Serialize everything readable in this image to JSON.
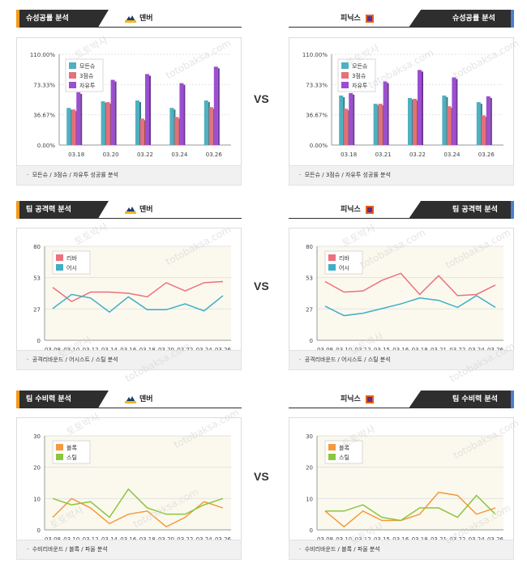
{
  "vs_label": "VS",
  "watermark": [
    "토토박사",
    "totobaksa.com"
  ],
  "colors": {
    "orange": "#f29a1c",
    "blue": "#4b7fd0",
    "dark": "#2e2e2e"
  },
  "panels": [
    {
      "id": "shot-denver",
      "title": "슈성공률 분석",
      "team": "덴버",
      "side": "left",
      "footer": "모든슈 / 3점슈 / 자유투 성공률 분석"
    },
    {
      "id": "shot-phoenix",
      "title": "슈성공률 분석",
      "team": "피닉스",
      "side": "right",
      "footer": "모든슈 / 3점슈 / 자유투 성공률 분석"
    },
    {
      "id": "off-denver",
      "title": "팀 공격력 분석",
      "team": "덴버",
      "side": "left",
      "footer": "공격리바운드 / 어시스트 / 스틸 분석"
    },
    {
      "id": "off-phoenix",
      "title": "팀 공격력 분석",
      "team": "피닉스",
      "side": "right",
      "footer": "공격리바운드 / 어시스트 / 스틸 분석"
    },
    {
      "id": "def-denver",
      "title": "팀 수비력 분석",
      "team": "덴버",
      "side": "left",
      "footer": "수비리바운드 / 블록 / 파울 분석"
    },
    {
      "id": "def-phoenix",
      "title": "팀 수비력 분석",
      "team": "피닉스",
      "side": "right",
      "footer": "수비리바운드 / 블록 / 파울 분석"
    }
  ],
  "chart_data": [
    {
      "panel": "shot-denver",
      "type": "bar",
      "categories": [
        "03.18",
        "03.20",
        "03.22",
        "03.24",
        "03.26"
      ],
      "yticks": [
        "0.00%",
        "36.67%",
        "73.33%",
        "110.00%"
      ],
      "ylim": [
        0,
        110
      ],
      "legend_position": "top-left",
      "series": [
        {
          "name": "모든슈",
          "color": "#4fb0c0",
          "values": [
            45,
            53,
            54,
            45,
            54
          ]
        },
        {
          "name": "3점슈",
          "color": "#e5707a",
          "values": [
            43,
            52,
            32,
            34,
            46
          ]
        },
        {
          "name": "자유투",
          "color": "#9b4fd0",
          "values": [
            64,
            79,
            86,
            75,
            95
          ]
        }
      ]
    },
    {
      "panel": "shot-phoenix",
      "type": "bar",
      "categories": [
        "03.18",
        "03.21",
        "03.22",
        "03.24",
        "03.26"
      ],
      "yticks": [
        "0.00%",
        "36.67%",
        "73.33%",
        "110.00%"
      ],
      "ylim": [
        0,
        110
      ],
      "legend_position": "top-left",
      "series": [
        {
          "name": "모든슈",
          "color": "#4fb0c0",
          "values": [
            60,
            50,
            57,
            60,
            52
          ]
        },
        {
          "name": "3점슈",
          "color": "#e5707a",
          "values": [
            44,
            50,
            56,
            47,
            36
          ]
        },
        {
          "name": "자유투",
          "color": "#9b4fd0",
          "values": [
            63,
            77,
            91,
            82,
            59
          ]
        }
      ]
    },
    {
      "panel": "off-denver",
      "type": "line",
      "categories": [
        "03.08",
        "03.10",
        "03.12",
        "03.14",
        "03.16",
        "03.18",
        "03.20",
        "03.22",
        "03.24",
        "03.26"
      ],
      "yticks": [
        "0",
        "27",
        "53",
        "80"
      ],
      "ylim": [
        0,
        80
      ],
      "legend_position": "top-left",
      "series": [
        {
          "name": "리바",
          "color": "#ef6f7c",
          "values": [
            45,
            33,
            41,
            41,
            40,
            37,
            49,
            42,
            49,
            50
          ]
        },
        {
          "name": "어시",
          "color": "#41aec6",
          "values": [
            27,
            39,
            36,
            24,
            37,
            26,
            26,
            31,
            25,
            38
          ]
        }
      ]
    },
    {
      "panel": "off-phoenix",
      "type": "line",
      "categories": [
        "03.08",
        "03.10",
        "03.12",
        "03.15",
        "03.16",
        "03.18",
        "03.21",
        "03.22",
        "03.24",
        "03.26"
      ],
      "yticks": [
        "0",
        "27",
        "53",
        "80"
      ],
      "ylim": [
        0,
        80
      ],
      "legend_position": "top-left",
      "series": [
        {
          "name": "리바",
          "color": "#ef6f7c",
          "values": [
            50,
            41,
            42,
            51,
            57,
            39,
            55,
            38,
            39,
            47
          ]
        },
        {
          "name": "어시",
          "color": "#41aec6",
          "values": [
            29,
            21,
            23,
            27,
            31,
            36,
            34,
            28,
            38,
            28
          ]
        }
      ]
    },
    {
      "panel": "def-denver",
      "type": "line",
      "categories": [
        "03.08",
        "03.10",
        "03.12",
        "03.14",
        "03.16",
        "03.18",
        "03.20",
        "03.22",
        "03.24",
        "03.26"
      ],
      "yticks": [
        "0",
        "10",
        "20",
        "30"
      ],
      "ylim": [
        0,
        30
      ],
      "legend_position": "top-left",
      "series": [
        {
          "name": "블록",
          "color": "#f59a3e",
          "values": [
            4,
            10,
            7,
            2,
            5,
            6,
            1,
            4,
            9,
            7
          ]
        },
        {
          "name": "스틸",
          "color": "#8cc63f",
          "values": [
            10,
            8,
            9,
            4,
            13,
            7,
            5,
            5,
            8,
            10
          ]
        }
      ]
    },
    {
      "panel": "def-phoenix",
      "type": "line",
      "categories": [
        "03.08",
        "03.10",
        "03.12",
        "03.15",
        "03.16",
        "03.18",
        "03.21",
        "03.22",
        "03.24",
        "03.26"
      ],
      "yticks": [
        "0",
        "10",
        "20",
        "30"
      ],
      "ylim": [
        0,
        30
      ],
      "legend_position": "top-left",
      "series": [
        {
          "name": "블록",
          "color": "#f59a3e",
          "values": [
            6,
            1,
            6,
            3,
            3,
            5,
            12,
            11,
            5,
            7
          ]
        },
        {
          "name": "스틸",
          "color": "#8cc63f",
          "values": [
            6,
            6,
            8,
            4,
            3,
            7,
            7,
            4,
            11,
            5
          ]
        }
      ]
    }
  ]
}
